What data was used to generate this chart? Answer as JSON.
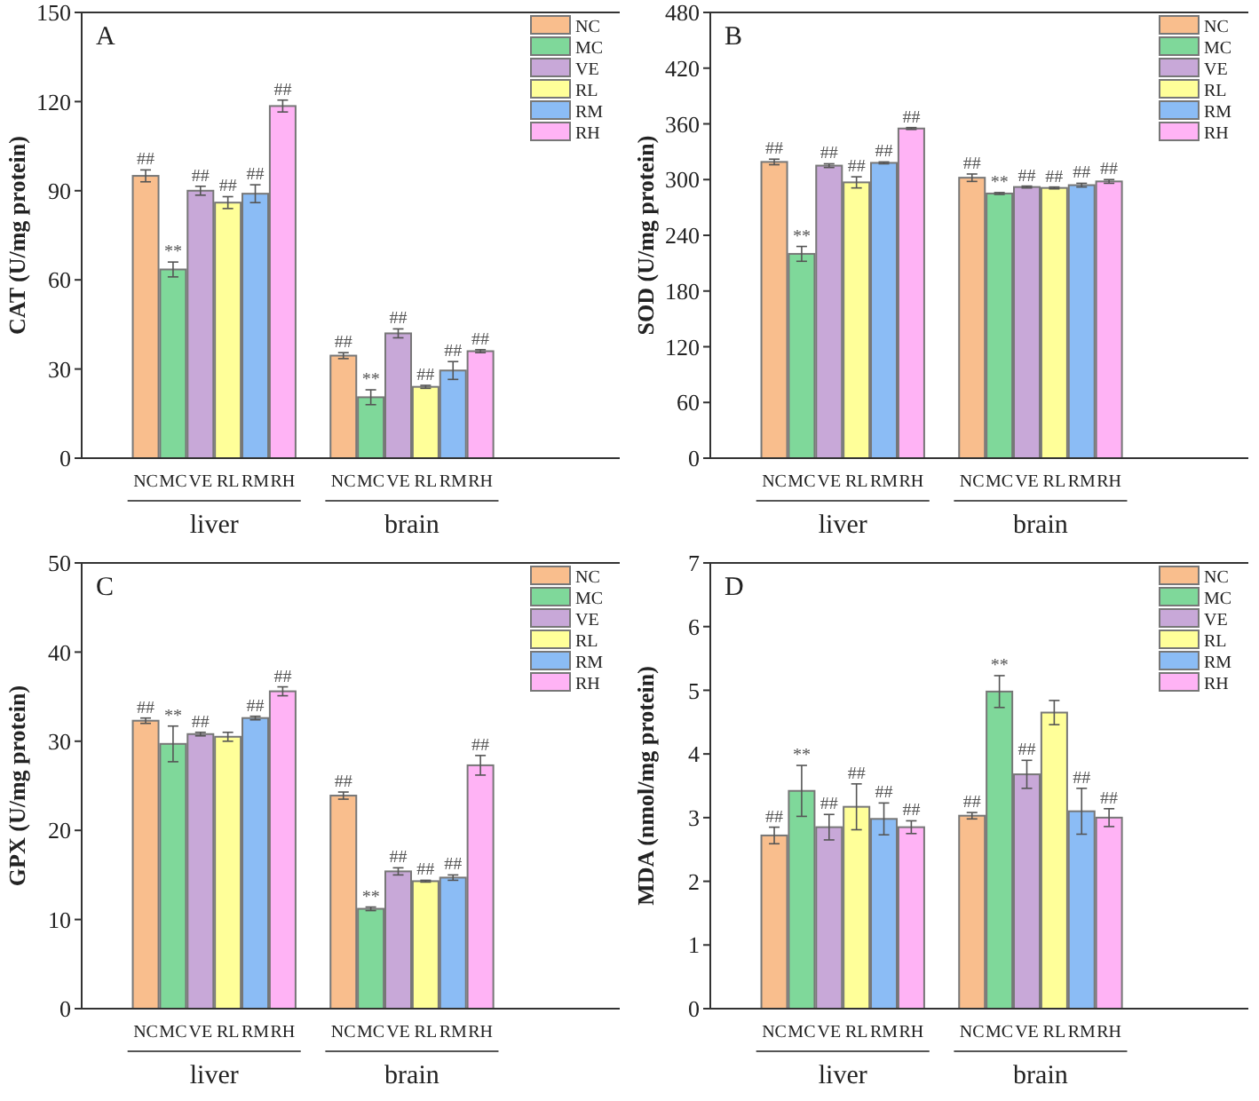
{
  "chart_data": [
    {
      "type": "bar",
      "title": "A",
      "ylabel": "CAT (U/mg protein)",
      "categories": [
        "liver",
        "brain"
      ],
      "ylim": [
        0,
        150
      ],
      "yticks": [
        0,
        30,
        60,
        90,
        120,
        150
      ],
      "legend": "top right",
      "series": [
        {
          "name": "NC",
          "color": "#f9be8d",
          "values": [
            95,
            34.5
          ],
          "errors": [
            2,
            1
          ],
          "value_labels": [
            "##",
            "##"
          ]
        },
        {
          "name": "MC",
          "color": "#7fd89a",
          "values": [
            63.5,
            20.5
          ],
          "errors": [
            2.5,
            2.5
          ],
          "value_labels": [
            "**",
            "**"
          ]
        },
        {
          "name": "VE",
          "color": "#c8a8d8",
          "values": [
            90,
            42
          ],
          "errors": [
            1.5,
            1.5
          ],
          "value_labels": [
            "##",
            "##"
          ]
        },
        {
          "name": "RL",
          "color": "#ffff99",
          "values": [
            86,
            24
          ],
          "errors": [
            2,
            0.5
          ],
          "value_labels": [
            "##",
            "##"
          ]
        },
        {
          "name": "RM",
          "color": "#8bbcf5",
          "values": [
            89,
            29.5
          ],
          "errors": [
            3,
            3
          ],
          "value_labels": [
            "##",
            "##"
          ]
        },
        {
          "name": "RH",
          "color": "#ffb3f5",
          "values": [
            118.5,
            36
          ],
          "errors": [
            2,
            0.5
          ],
          "value_labels": [
            "##",
            "##"
          ]
        }
      ]
    },
    {
      "type": "bar",
      "title": "B",
      "ylabel": "SOD (U/mg protein)",
      "categories": [
        "liver",
        "brain"
      ],
      "ylim": [
        0,
        480
      ],
      "yticks": [
        0,
        60,
        120,
        180,
        240,
        300,
        360,
        420,
        480
      ],
      "legend": "top right",
      "series": [
        {
          "name": "NC",
          "color": "#f9be8d",
          "values": [
            319,
            302
          ],
          "errors": [
            3,
            4
          ],
          "value_labels": [
            "##",
            "##"
          ]
        },
        {
          "name": "MC",
          "color": "#7fd89a",
          "values": [
            220,
            285
          ],
          "errors": [
            8,
            1
          ],
          "value_labels": [
            "**",
            "**"
          ]
        },
        {
          "name": "VE",
          "color": "#c8a8d8",
          "values": [
            315,
            292
          ],
          "errors": [
            2,
            1
          ],
          "value_labels": [
            "##",
            "##"
          ]
        },
        {
          "name": "RL",
          "color": "#ffff99",
          "values": [
            297,
            291
          ],
          "errors": [
            6,
            1
          ],
          "value_labels": [
            "##",
            "##"
          ]
        },
        {
          "name": "RM",
          "color": "#8bbcf5",
          "values": [
            318,
            294
          ],
          "errors": [
            1,
            2
          ],
          "value_labels": [
            "##",
            "##"
          ]
        },
        {
          "name": "RH",
          "color": "#ffb3f5",
          "values": [
            355,
            298
          ],
          "errors": [
            1,
            2
          ],
          "value_labels": [
            "##",
            "##"
          ]
        }
      ]
    },
    {
      "type": "bar",
      "title": "C",
      "ylabel": "GPX (U/mg protein)",
      "categories": [
        "liver",
        "brain"
      ],
      "ylim": [
        0,
        50
      ],
      "yticks": [
        0,
        10,
        20,
        30,
        40,
        50
      ],
      "legend": "top right",
      "series": [
        {
          "name": "NC",
          "color": "#f9be8d",
          "values": [
            32.3,
            23.9
          ],
          "errors": [
            0.3,
            0.4
          ],
          "value_labels": [
            "##",
            "##"
          ]
        },
        {
          "name": "MC",
          "color": "#7fd89a",
          "values": [
            29.7,
            11.2
          ],
          "errors": [
            2,
            0.2
          ],
          "value_labels": [
            "**",
            "**"
          ]
        },
        {
          "name": "VE",
          "color": "#c8a8d8",
          "values": [
            30.8,
            15.4
          ],
          "errors": [
            0.2,
            0.4
          ],
          "value_labels": [
            "##",
            "##"
          ]
        },
        {
          "name": "RL",
          "color": "#ffff99",
          "values": [
            30.5,
            14.3
          ],
          "errors": [
            0.5,
            0.1
          ],
          "value_labels": [
            null,
            "##"
          ]
        },
        {
          "name": "RM",
          "color": "#8bbcf5",
          "values": [
            32.6,
            14.7
          ],
          "errors": [
            0.2,
            0.3
          ],
          "value_labels": [
            "##",
            "##"
          ]
        },
        {
          "name": "RH",
          "color": "#ffb3f5",
          "values": [
            35.6,
            27.3
          ],
          "errors": [
            0.5,
            1.1
          ],
          "value_labels": [
            "##",
            "##"
          ]
        }
      ]
    },
    {
      "type": "bar",
      "title": "D",
      "ylabel": "MDA (nmol/mg protein)",
      "categories": [
        "liver",
        "brain"
      ],
      "ylim": [
        0,
        7
      ],
      "yticks": [
        0,
        1,
        2,
        3,
        4,
        5,
        6,
        7
      ],
      "legend": "top right",
      "series": [
        {
          "name": "NC",
          "color": "#f9be8d",
          "values": [
            2.72,
            3.03
          ],
          "errors": [
            0.13,
            0.05
          ],
          "value_labels": [
            "##",
            "##"
          ]
        },
        {
          "name": "MC",
          "color": "#7fd89a",
          "values": [
            3.42,
            4.98
          ],
          "errors": [
            0.4,
            0.25
          ],
          "value_labels": [
            "**",
            "**"
          ]
        },
        {
          "name": "VE",
          "color": "#c8a8d8",
          "values": [
            2.85,
            3.68
          ],
          "errors": [
            0.2,
            0.22
          ],
          "value_labels": [
            "##",
            "##"
          ]
        },
        {
          "name": "RL",
          "color": "#ffff99",
          "values": [
            3.17,
            4.65
          ],
          "errors": [
            0.36,
            0.19
          ],
          "value_labels": [
            "##",
            null
          ]
        },
        {
          "name": "RM",
          "color": "#8bbcf5",
          "values": [
            2.98,
            3.1
          ],
          "errors": [
            0.25,
            0.36
          ],
          "value_labels": [
            "##",
            "##"
          ]
        },
        {
          "name": "RH",
          "color": "#ffb3f5",
          "values": [
            2.85,
            3.0
          ],
          "errors": [
            0.1,
            0.14
          ],
          "value_labels": [
            "##",
            "##"
          ]
        }
      ]
    }
  ]
}
